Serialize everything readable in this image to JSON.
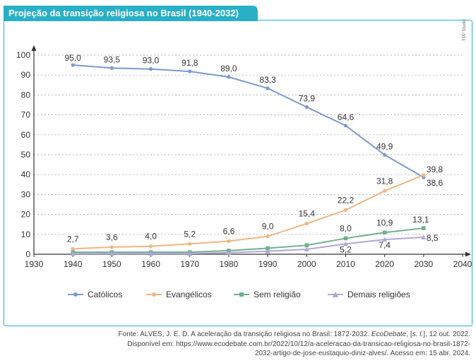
{
  "header": {
    "title": "Projeção da transição religiosa no Brasil (1940-2032)"
  },
  "credit": "TDP Studio",
  "colors": {
    "title_bg": "#2ab0c6",
    "catolicos": "#7b9acc",
    "evangelicos": "#f2b583",
    "sem_religiao": "#6fb08e",
    "demais": "#b0a6d6"
  },
  "chart_data": {
    "type": "line",
    "title": "Projeção da transição religiosa no Brasil (1940-2032)",
    "xlabel": "",
    "ylabel": "",
    "xlim": [
      1930,
      2040
    ],
    "ylim": [
      0,
      100
    ],
    "x_ticks": [
      1930,
      1940,
      1950,
      1960,
      1970,
      1980,
      1990,
      2000,
      2010,
      2020,
      2030,
      2040
    ],
    "y_ticks": [
      0,
      10,
      20,
      30,
      40,
      50,
      60,
      70,
      80,
      90,
      100
    ],
    "grid": "horizontal dashed",
    "legend_position": "bottom",
    "series": [
      {
        "name": "Católicos",
        "color": "#7b9acc",
        "marker": "circle",
        "x": [
          1940,
          1950,
          1960,
          1970,
          1980,
          1990,
          2000,
          2010,
          2020,
          2030
        ],
        "values": [
          95.0,
          93.5,
          93.0,
          91.8,
          89.0,
          83.3,
          73.9,
          64.6,
          49.9,
          38.6
        ],
        "labels": [
          "95,0",
          "93,5",
          "93,0",
          "91,8",
          "89,0",
          "83,3",
          "73,9",
          "64,6",
          "49,9",
          "38,6"
        ]
      },
      {
        "name": "Evangélicos",
        "color": "#f2b583",
        "marker": "circle",
        "x": [
          1940,
          1950,
          1960,
          1970,
          1980,
          1990,
          2000,
          2010,
          2020,
          2030
        ],
        "values": [
          2.7,
          3.6,
          4.0,
          5.2,
          6.6,
          9.0,
          15.4,
          22.2,
          31.8,
          39.8
        ],
        "labels": [
          "2,7",
          "3,6",
          "4,0",
          "5,2",
          "6,6",
          "9,0",
          "15,4",
          "22,2",
          "31,8",
          "39,8"
        ]
      },
      {
        "name": "Sem religião",
        "color": "#6fb08e",
        "marker": "square",
        "x": [
          1940,
          1950,
          1960,
          1970,
          1980,
          1990,
          2000,
          2010,
          2020,
          2030
        ],
        "values": [
          1.0,
          1.0,
          1.0,
          1.0,
          1.8,
          3.0,
          4.5,
          8.0,
          10.9,
          13.1
        ],
        "labels": [
          "",
          "",
          "",
          "",
          "",
          "",
          "",
          "8,0",
          "10,9",
          "13,1"
        ]
      },
      {
        "name": "Demais religiões",
        "color": "#b0a6d6",
        "marker": "triangle",
        "x": [
          1940,
          1950,
          1960,
          1970,
          1980,
          1990,
          2000,
          2010,
          2020,
          2030
        ],
        "values": [
          0.3,
          0.3,
          0.3,
          0.3,
          0.8,
          1.5,
          2.5,
          5.2,
          7.4,
          8.5
        ],
        "labels": [
          "",
          "",
          "",
          "",
          "",
          "",
          "",
          "5,2",
          "7,4",
          "8,5"
        ]
      }
    ]
  },
  "source": {
    "line1_a": "Fonte: ALVES, J. E. D. A aceleração da transição religiosa no Brasil: 1872-2032. ",
    "line1_b": "EcoDebate",
    "line1_c": ", [",
    "line1_d": "s. l.",
    "line1_e": "], 12 out. 2022.",
    "line2": "Disponível em: https://www.ecodebate.com.br/2022/10/12/a-aceleracao-da-transicao-religiosa-no-brasil-1872-",
    "line3": "2032-artigo-de-jose-eustaquio-diniz-alves/. Acesso em: 15 abr. 2024."
  }
}
